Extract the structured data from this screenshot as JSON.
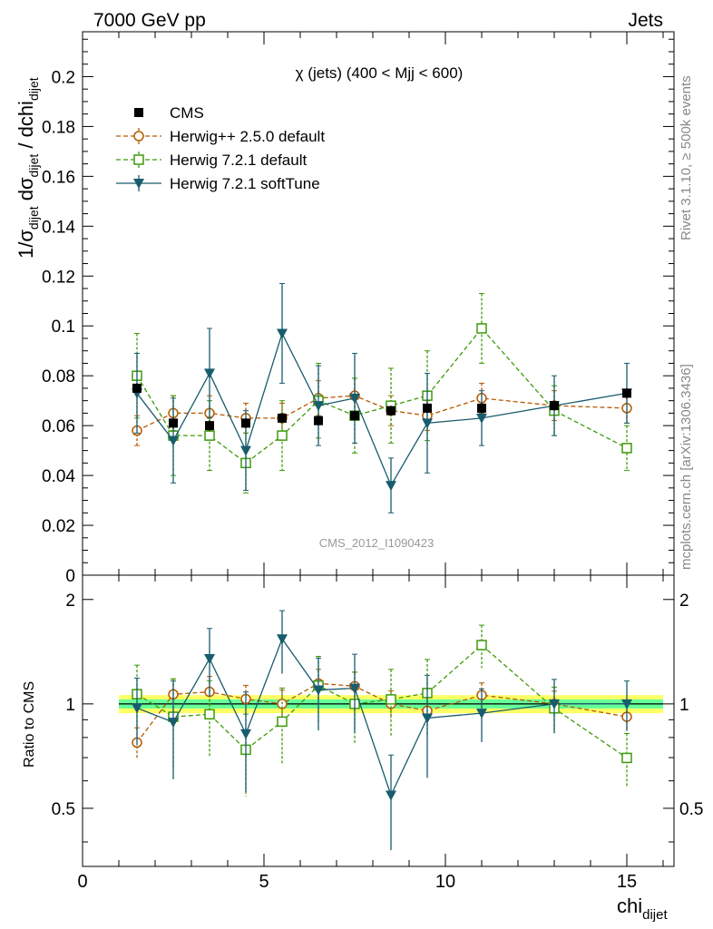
{
  "header": {
    "left": "7000 GeV pp",
    "right": "Jets"
  },
  "side_text": {
    "rivet": "Rivet 3.1.10, ≥ 500k events",
    "mcplots": "mcplots.cern.ch [arXiv:1306.3436]"
  },
  "chart_data": {
    "type": "scatter",
    "title": "χ (jets) (400 < Mjj <  600)",
    "analysis_tag": "CMS_2012_I1090423",
    "xlabel": {
      "main": "chi",
      "sub": "dijet"
    },
    "ylabel": {
      "text": "1/σ_dijet dσ_dijet / dchi_dijet"
    },
    "ratio_ylabel": "Ratio to CMS",
    "xlim": [
      0,
      16.3
    ],
    "ylim": [
      0,
      0.218
    ],
    "ratio_ylim": [
      0.34,
      2.35
    ],
    "x_ticks": [
      "0",
      "5",
      "10",
      "15"
    ],
    "y_ticks": [
      "0",
      "0.02",
      "0.04",
      "0.06",
      "0.08",
      "0.1",
      "0.12",
      "0.14",
      "0.16",
      "0.18",
      "0.2"
    ],
    "ratio_ticks": [
      "0.5",
      "1",
      "2"
    ],
    "x": [
      1.5,
      2.5,
      3.5,
      4.5,
      5.5,
      6.5,
      7.5,
      8.5,
      9.5,
      11,
      13,
      15
    ],
    "x_edges": [
      1,
      2,
      3,
      4,
      5,
      6,
      7,
      8,
      9,
      10,
      12,
      14,
      16
    ],
    "data": {
      "name": "CMS",
      "values": [
        0.075,
        0.061,
        0.06,
        0.061,
        0.063,
        0.062,
        0.064,
        0.066,
        0.067,
        0.067,
        0.068,
        0.073
      ],
      "errors": [
        0.002,
        0.002,
        0.002,
        0.002,
        0.002,
        0.002,
        0.002,
        0.002,
        0.002,
        0.002,
        0.002,
        0.002
      ]
    },
    "series": [
      {
        "name": "Herwig++ 2.5.0 default",
        "color": "#b35900",
        "marker": "circle",
        "values": [
          0.058,
          0.065,
          0.065,
          0.063,
          0.063,
          0.071,
          0.072,
          0.066,
          0.064,
          0.071,
          0.068,
          0.067
        ],
        "errors": [
          0.006,
          0.007,
          0.007,
          0.006,
          0.006,
          0.007,
          0.007,
          0.006,
          0.006,
          0.006,
          0.006,
          0.006
        ]
      },
      {
        "name": "Herwig 7.2.1 default",
        "color": "#3e9a0a",
        "marker": "square",
        "values": [
          0.08,
          0.056,
          0.056,
          0.045,
          0.056,
          0.07,
          0.064,
          0.068,
          0.072,
          0.099,
          0.066,
          0.051
        ],
        "errors": [
          0.017,
          0.016,
          0.014,
          0.012,
          0.014,
          0.015,
          0.015,
          0.015,
          0.018,
          0.014,
          0.01,
          0.009
        ]
      },
      {
        "name": "Herwig 7.2.1 softTune",
        "color": "#185c6e",
        "marker": "triangle",
        "values": [
          0.073,
          0.054,
          0.081,
          0.05,
          0.097,
          0.068,
          0.071,
          0.036,
          0.061,
          0.063,
          0.068,
          0.073
        ],
        "errors": [
          0.016,
          0.017,
          0.018,
          0.016,
          0.02,
          0.016,
          0.018,
          0.011,
          0.02,
          0.011,
          0.012,
          0.012
        ]
      }
    ],
    "ratio_band": {
      "inner": 0.03,
      "outer": 0.06,
      "inner_color": "#66ff99",
      "outer_color": "#ffff66"
    },
    "legend_position": "top-left"
  }
}
